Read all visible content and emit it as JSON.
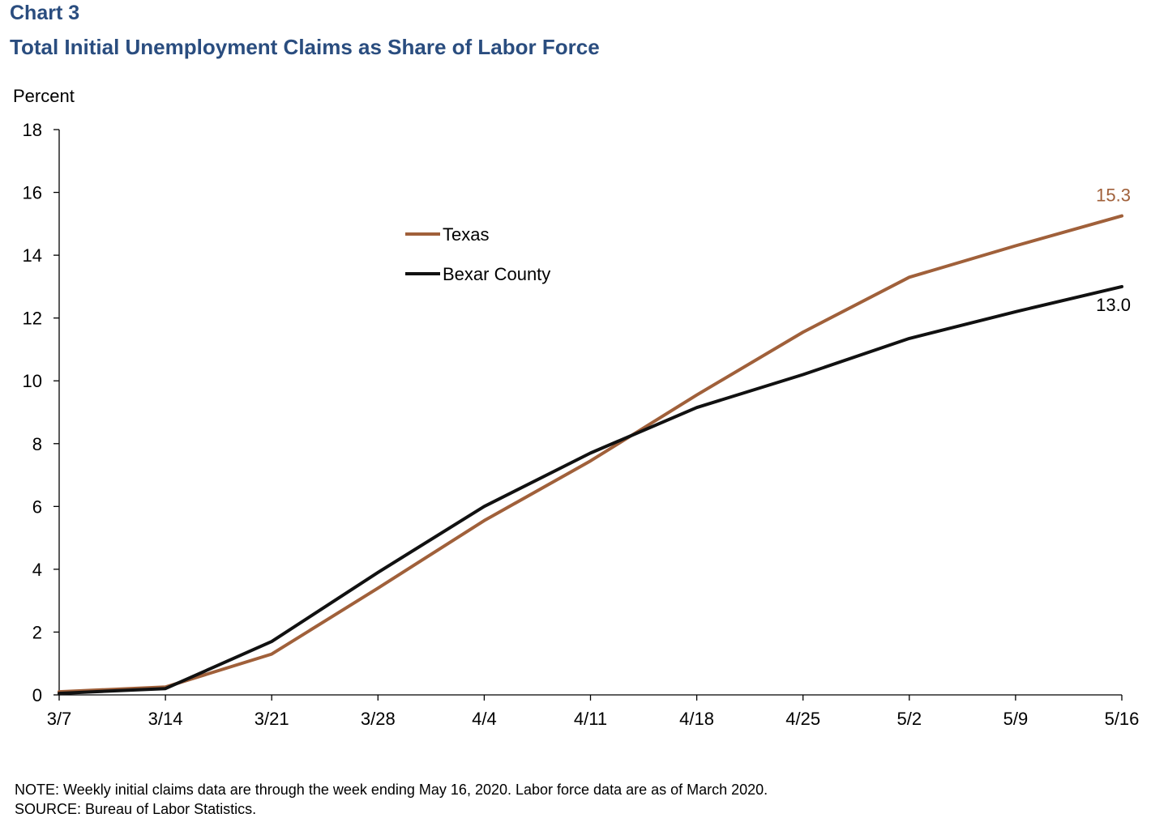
{
  "header": {
    "chart_label": "Chart 3",
    "title": "Total Initial Unemployment Claims as Share of Labor Force"
  },
  "chart_data": {
    "type": "line",
    "title": "Total Initial Unemployment Claims as Share of Labor Force",
    "ylabel": "Percent",
    "xlabel": "",
    "ylim": [
      0,
      18
    ],
    "y_ticks": [
      0,
      2,
      4,
      6,
      8,
      10,
      12,
      14,
      16,
      18
    ],
    "categories": [
      "3/7",
      "3/14",
      "3/21",
      "3/28",
      "4/4",
      "4/11",
      "4/18",
      "4/25",
      "5/2",
      "5/9",
      "5/16"
    ],
    "grid": false,
    "legend_position": "upper-center",
    "series": [
      {
        "name": "Texas",
        "color": "#a0603a",
        "values": [
          0.1,
          0.25,
          1.3,
          3.4,
          5.55,
          7.45,
          9.55,
          11.55,
          13.3,
          14.3,
          15.25
        ],
        "end_label": "15.3"
      },
      {
        "name": "Bexar County",
        "color": "#111111",
        "values": [
          0.05,
          0.2,
          1.7,
          3.9,
          6.0,
          7.7,
          9.15,
          10.2,
          11.35,
          12.2,
          13.0
        ],
        "end_label": "13.0"
      }
    ]
  },
  "footer": {
    "note": "NOTE: Weekly initial claims data are through the week ending May 16, 2020. Labor force data are as of March 2020.",
    "source": "SOURCE: Bureau of Labor Statistics."
  }
}
